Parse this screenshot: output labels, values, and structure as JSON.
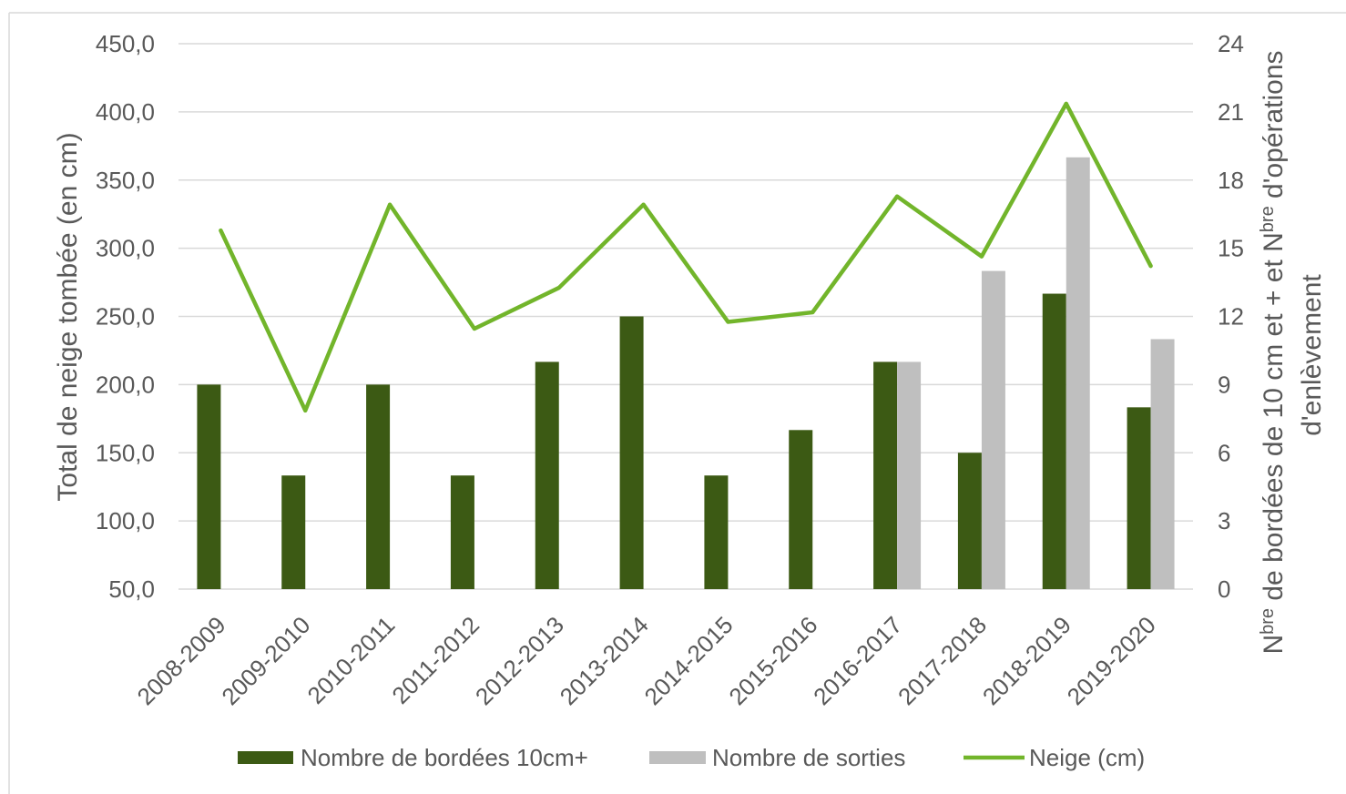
{
  "chart_data": {
    "type": "bar",
    "categories": [
      "2008-2009",
      "2009-2010",
      "2010-2011",
      "2011-2012",
      "2012-2013",
      "2013-2014",
      "2014-2015",
      "2015-2016",
      "2016-2017",
      "2017-2018",
      "2018-2019",
      "2019-2020"
    ],
    "series": [
      {
        "name": "Nombre de bordées 10cm+",
        "type": "bar",
        "axis": "right",
        "color": "#3c5a14",
        "values": [
          9,
          5,
          9,
          5,
          10,
          12,
          5,
          7,
          10,
          6,
          13,
          8
        ]
      },
      {
        "name": "Nombre de sorties",
        "type": "bar",
        "axis": "right",
        "color": "#bfbfbf",
        "values": [
          null,
          null,
          null,
          null,
          null,
          null,
          null,
          null,
          10,
          14,
          19,
          11
        ]
      },
      {
        "name": "Neige (cm)",
        "type": "line",
        "axis": "left",
        "color": "#72b52b",
        "values": [
          313,
          181,
          332,
          241,
          271,
          332,
          246,
          253,
          338,
          294,
          406,
          287
        ]
      }
    ],
    "ylabel": "Total de neige tombée (en cm)",
    "y2label": {
      "line1": [
        {
          "text": "N"
        },
        {
          "text": "bre",
          "sup": true
        },
        {
          "text": " de bordées de 10 cm et + et "
        },
        {
          "text": "N"
        },
        {
          "text": "bre",
          "sup": true
        },
        {
          "text": " d'opérations"
        }
      ],
      "line2": "d'enlèvement"
    },
    "ylim": [
      50,
      450
    ],
    "yticks": [
      "50,0",
      "100,0",
      "150,0",
      "200,0",
      "250,0",
      "300,0",
      "350,0",
      "400,0",
      "450,0"
    ],
    "y2lim": [
      0,
      24
    ],
    "y2ticks": [
      "0",
      "3",
      "6",
      "9",
      "12",
      "15",
      "18",
      "21",
      "24"
    ],
    "grid": true,
    "legend": "bottom"
  }
}
